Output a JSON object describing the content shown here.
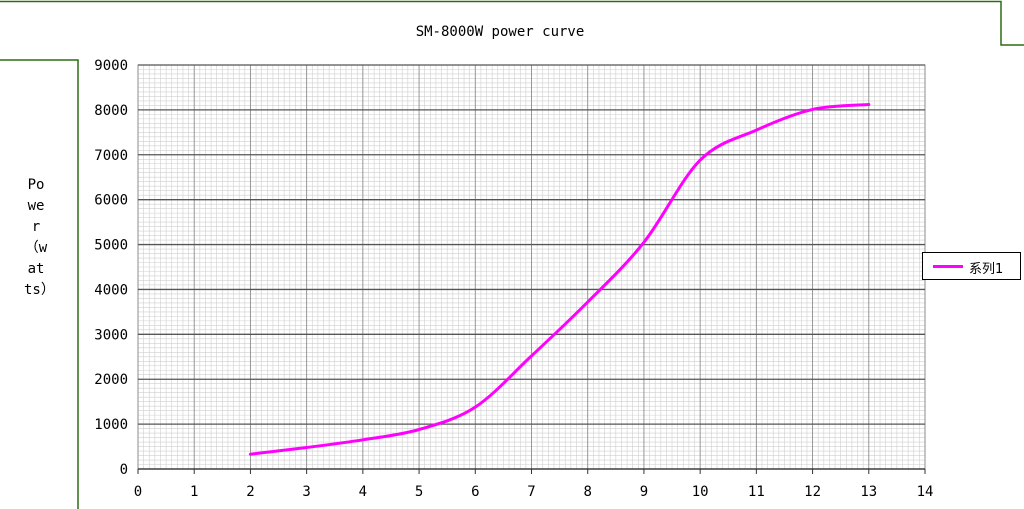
{
  "chart_data": {
    "type": "line",
    "title": "SM-8000W power curve",
    "ylabel": "Power（watts）",
    "xlabel": "",
    "xlim": [
      0,
      14
    ],
    "ylim": [
      0,
      9000
    ],
    "xticks": [
      0,
      1,
      2,
      3,
      4,
      5,
      6,
      7,
      8,
      9,
      10,
      11,
      12,
      13,
      14
    ],
    "yticks": [
      0,
      1000,
      2000,
      3000,
      4000,
      5000,
      6000,
      7000,
      8000,
      9000
    ],
    "grid": true,
    "legend_position": "right",
    "series": [
      {
        "name": "系列1",
        "color": "#ff00ff",
        "x": [
          2,
          3,
          4,
          5,
          6,
          7,
          8,
          9,
          10,
          11,
          12,
          13
        ],
        "y": [
          330,
          480,
          650,
          880,
          1380,
          2520,
          3720,
          5050,
          6880,
          7550,
          8010,
          8120
        ]
      }
    ]
  }
}
